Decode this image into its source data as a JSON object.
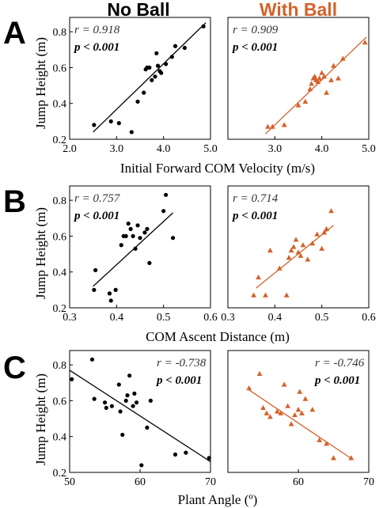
{
  "column_titles": {
    "no_ball": "No Ball",
    "with_ball": "With Ball"
  },
  "colors": {
    "no_ball": "#000000",
    "with_ball": "#d4622a"
  },
  "y_label": "Jump Height (m)",
  "panels": {
    "A": {
      "label": "A",
      "xlabel": "Initial Forward COM Velocity (m/s)"
    },
    "B": {
      "label": "B",
      "xlabel": "COM Ascent Distance (m)"
    },
    "C": {
      "label": "C",
      "xlabel": "Plant Angle (º)"
    }
  },
  "chart_data": [
    {
      "id": "A-no-ball",
      "type": "scatter",
      "panel": "A",
      "condition": "No Ball",
      "marker": "circle",
      "color": "#000000",
      "r_text": "r = 0.918",
      "p_text": "p < 0.001",
      "stat_position": "top-left",
      "xlim": [
        2,
        5
      ],
      "ylim": [
        0.2,
        0.88
      ],
      "xticks": [
        2,
        3,
        4,
        5
      ],
      "yticks": [
        0.2,
        0.4,
        0.6,
        0.8
      ],
      "x": [
        2.52,
        2.88,
        3.05,
        3.32,
        3.45,
        3.58,
        3.62,
        3.65,
        3.7,
        3.75,
        3.82,
        3.85,
        3.88,
        3.92,
        3.95,
        4.05,
        4.18,
        4.25,
        4.45,
        4.85
      ],
      "y": [
        0.28,
        0.3,
        0.29,
        0.24,
        0.41,
        0.46,
        0.59,
        0.6,
        0.6,
        0.53,
        0.55,
        0.68,
        0.61,
        0.58,
        0.57,
        0.62,
        0.66,
        0.72,
        0.71,
        0.83
      ],
      "fit": [
        [
          2.5,
          0.24
        ],
        [
          4.9,
          0.85
        ]
      ]
    },
    {
      "id": "A-with-ball",
      "type": "scatter",
      "panel": "A",
      "condition": "With Ball",
      "marker": "triangle",
      "color": "#d4622a",
      "r_text": "r = 0.909",
      "p_text": "p < 0.001",
      "stat_position": "top-left",
      "xlim": [
        2,
        5
      ],
      "ylim": [
        0.2,
        0.88
      ],
      "xticks": [
        3,
        4,
        5
      ],
      "yticks": [],
      "x": [
        2.85,
        2.95,
        3.2,
        3.5,
        3.65,
        3.75,
        3.78,
        3.82,
        3.85,
        3.88,
        3.92,
        3.95,
        4.0,
        4.05,
        4.1,
        4.2,
        4.25,
        4.35,
        4.45,
        4.92
      ],
      "y": [
        0.27,
        0.27,
        0.28,
        0.39,
        0.41,
        0.48,
        0.51,
        0.54,
        0.55,
        0.53,
        0.52,
        0.54,
        0.57,
        0.55,
        0.46,
        0.53,
        0.61,
        0.54,
        0.65,
        0.74
      ],
      "fit": [
        [
          2.8,
          0.23
        ],
        [
          4.95,
          0.77
        ]
      ]
    },
    {
      "id": "B-no-ball",
      "type": "scatter",
      "panel": "B",
      "condition": "No Ball",
      "marker": "circle",
      "color": "#000000",
      "r_text": "r = 0.757",
      "p_text": "p < 0.001",
      "stat_position": "top-left",
      "xlim": [
        0.3,
        0.6
      ],
      "ylim": [
        0.2,
        0.88
      ],
      "xticks": [
        0.3,
        0.4,
        0.5,
        0.6
      ],
      "yticks": [
        0.2,
        0.4,
        0.6,
        0.8
      ],
      "x": [
        0.352,
        0.355,
        0.385,
        0.388,
        0.398,
        0.41,
        0.415,
        0.42,
        0.425,
        0.43,
        0.435,
        0.44,
        0.445,
        0.45,
        0.46,
        0.465,
        0.47,
        0.5,
        0.505,
        0.52
      ],
      "y": [
        0.3,
        0.41,
        0.28,
        0.24,
        0.3,
        0.55,
        0.6,
        0.6,
        0.67,
        0.64,
        0.6,
        0.53,
        0.66,
        0.59,
        0.62,
        0.64,
        0.45,
        0.74,
        0.83,
        0.59
      ],
      "fit": [
        [
          0.35,
          0.32
        ],
        [
          0.52,
          0.73
        ]
      ]
    },
    {
      "id": "B-with-ball",
      "type": "scatter",
      "panel": "B",
      "condition": "With Ball",
      "marker": "triangle",
      "color": "#d4622a",
      "r_text": "r = 0.714",
      "p_text": "p < 0.001",
      "stat_position": "top-left",
      "xlim": [
        0.3,
        0.6
      ],
      "ylim": [
        0.2,
        0.88
      ],
      "xticks": [
        0.3,
        0.4,
        0.5,
        0.6
      ],
      "yticks": [],
      "x": [
        0.355,
        0.365,
        0.38,
        0.39,
        0.41,
        0.425,
        0.43,
        0.435,
        0.44,
        0.445,
        0.45,
        0.455,
        0.46,
        0.47,
        0.48,
        0.49,
        0.5,
        0.505,
        0.51,
        0.52
      ],
      "y": [
        0.27,
        0.37,
        0.27,
        0.52,
        0.42,
        0.27,
        0.48,
        0.52,
        0.54,
        0.58,
        0.51,
        0.49,
        0.55,
        0.47,
        0.56,
        0.61,
        0.53,
        0.62,
        0.64,
        0.74
      ],
      "fit": [
        [
          0.36,
          0.31
        ],
        [
          0.525,
          0.66
        ]
      ]
    },
    {
      "id": "C-no-ball",
      "type": "scatter",
      "panel": "C",
      "condition": "No Ball",
      "marker": "circle",
      "color": "#000000",
      "r_text": "r = -0.738",
      "p_text": "p < 0.001",
      "stat_position": "top-right",
      "xlim": [
        50,
        70
      ],
      "ylim": [
        0.2,
        0.88
      ],
      "xticks": [
        50,
        60,
        70
      ],
      "yticks": [
        0.2,
        0.4,
        0.6,
        0.8
      ],
      "x": [
        50.3,
        53.2,
        53.5,
        55.0,
        55.2,
        56.0,
        57.0,
        57.2,
        57.5,
        58.0,
        58.2,
        58.5,
        59.0,
        59.2,
        59.5,
        60.2,
        61.0,
        61.5,
        65.0,
        66.5,
        69.8
      ],
      "y": [
        0.72,
        0.83,
        0.61,
        0.59,
        0.56,
        0.57,
        0.69,
        0.54,
        0.41,
        0.6,
        0.63,
        0.74,
        0.57,
        0.64,
        0.59,
        0.24,
        0.45,
        0.6,
        0.3,
        0.31,
        0.28
      ],
      "fit": [
        [
          50,
          0.77
        ],
        [
          70,
          0.26
        ]
      ]
    },
    {
      "id": "C-with-ball",
      "type": "scatter",
      "panel": "C",
      "condition": "With Ball",
      "marker": "triangle",
      "color": "#d4622a",
      "r_text": "r = -0.746",
      "p_text": "p < 0.001",
      "stat_position": "top-right",
      "xlim": [
        50,
        70
      ],
      "ylim": [
        0.2,
        0.88
      ],
      "xticks": [
        60,
        70
      ],
      "yticks": [],
      "x": [
        53.0,
        54.5,
        55.0,
        55.5,
        56.0,
        57.0,
        57.5,
        58.0,
        58.5,
        59.0,
        59.5,
        60.0,
        60.2,
        60.5,
        61.0,
        62.0,
        63.0,
        64.0,
        65.0,
        67.5
      ],
      "y": [
        0.67,
        0.75,
        0.56,
        0.53,
        0.51,
        0.54,
        0.53,
        0.69,
        0.57,
        0.47,
        0.52,
        0.55,
        0.65,
        0.53,
        0.61,
        0.55,
        0.38,
        0.36,
        0.28,
        0.28
      ],
      "fit": [
        [
          53,
          0.66
        ],
        [
          67.8,
          0.27
        ]
      ]
    }
  ]
}
